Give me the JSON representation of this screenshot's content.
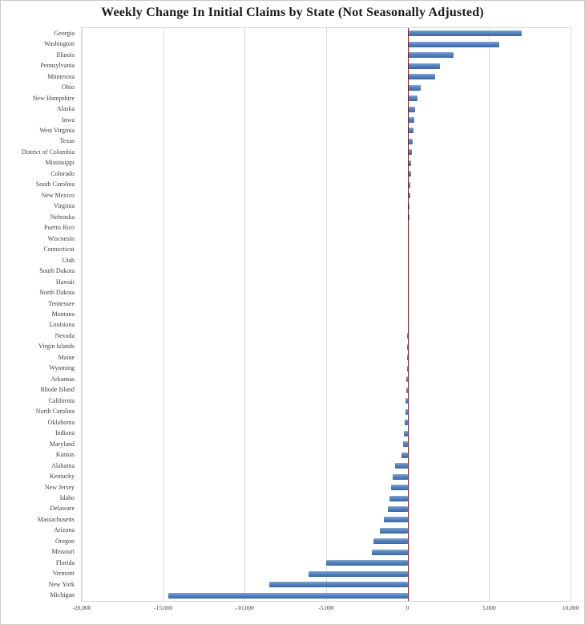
{
  "title": "Weekly Change In Initial Claims by State (Not Seasonally Adjusted)",
  "chart_data": {
    "type": "bar",
    "orientation": "horizontal",
    "title": "Weekly Change In Initial Claims by State (Not Seasonally Adjusted)",
    "xlabel": "",
    "ylabel": "",
    "xlim": [
      -20000,
      10000
    ],
    "xticks": [
      -20000,
      -15000,
      -10000,
      -5000,
      0,
      5000,
      10000
    ],
    "xtick_labels": [
      "-20,000",
      "-15,000",
      "-10,000",
      "-5,000",
      "0",
      "5,000",
      "10,000"
    ],
    "grid": true,
    "legend": "none",
    "bar_color": "#4f81bd",
    "zero_line_color": "#c00000",
    "categories": [
      "Georgia",
      "Washington",
      "Illinois",
      "Pennsylvania",
      "Minnesota",
      "Ohio",
      "New Hampshire",
      "Alaska",
      "Iowa",
      "West Virginia",
      "Texas",
      "District of Columbia",
      "Mississippi",
      "Colorado",
      "South Carolina",
      "New Mexico",
      "Virginia",
      "Nebraska",
      "Puerto Rico",
      "Wisconsin",
      "Connecticut",
      "Utah",
      "South Dakota",
      "Hawaii",
      "North Dakota",
      "Tennessee",
      "Montana",
      "Louisiana",
      "Nevada",
      "Virgin Islands",
      "Maine",
      "Wyoming",
      "Arkansas",
      "Rhode Island",
      "California",
      "North Carolina",
      "Oklahoma",
      "Indiana",
      "Maryland",
      "Kansas",
      "Alabama",
      "Kentucky",
      "New Jersey",
      "Idaho",
      "Delaware",
      "Massachusetts",
      "Arizona",
      "Oregon",
      "Missouri",
      "Florida",
      "Vermont",
      "New York",
      "Michigan"
    ],
    "values": [
      7000,
      5600,
      2800,
      2000,
      1700,
      800,
      600,
      450,
      400,
      350,
      300,
      250,
      225,
      200,
      175,
      150,
      125,
      110,
      90,
      75,
      50,
      30,
      20,
      15,
      10,
      5,
      0,
      -5,
      -10,
      -15,
      -25,
      -50,
      -75,
      -100,
      -125,
      -150,
      -200,
      -250,
      -300,
      -400,
      -750,
      -900,
      -1000,
      -1100,
      -1200,
      -1450,
      -1700,
      -2100,
      -2200,
      -5000,
      -6100,
      -8500,
      -14700
    ]
  }
}
